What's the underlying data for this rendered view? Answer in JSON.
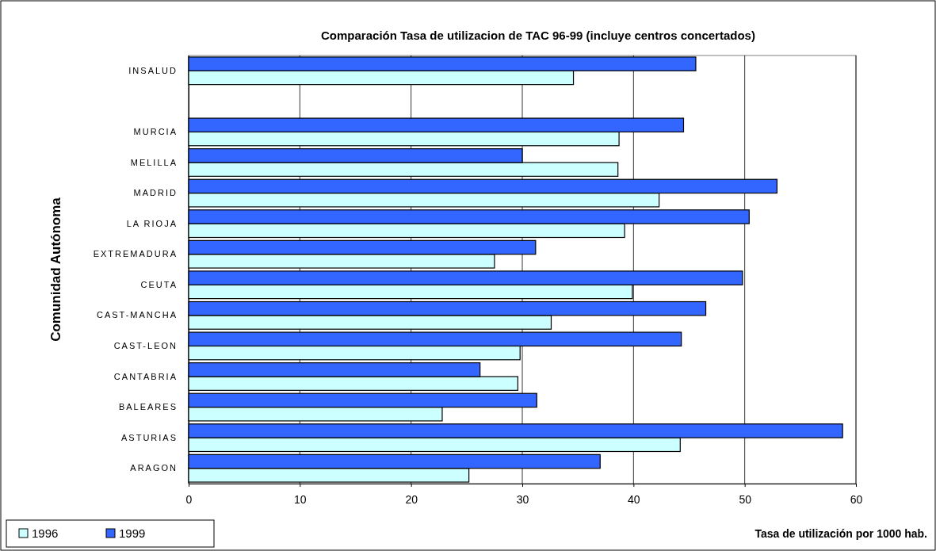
{
  "chart_data": {
    "type": "bar",
    "orientation": "horizontal",
    "title": "Comparación Tasa de utilizacion de TAC 96-99 (incluye centros concertados)",
    "xlabel": "Tasa de utilización por 1000 hab.",
    "ylabel": "Comunidad Autónoma",
    "categories": [
      "INSALUD",
      null,
      "MURCIA",
      "MELILLA",
      "MADRID",
      "LA RIOJA",
      "EXTREMADURA",
      "CEUTA",
      "CAST-MANCHA",
      "CAST-LEON",
      "CANTABRIA",
      "BALEARES",
      "ASTURIAS",
      "ARAGON"
    ],
    "series": [
      {
        "name": "1996",
        "color": "#ccffff",
        "values": [
          34.6,
          null,
          38.7,
          38.6,
          42.3,
          39.2,
          27.5,
          39.9,
          32.6,
          29.8,
          29.6,
          22.8,
          44.2,
          25.2
        ]
      },
      {
        "name": "1999",
        "color": "#3366ff",
        "values": [
          45.6,
          null,
          44.5,
          30.0,
          52.9,
          50.4,
          31.2,
          49.8,
          46.5,
          44.3,
          26.2,
          31.3,
          58.8,
          37.0
        ]
      }
    ],
    "xlim": [
      0,
      60
    ],
    "xticks": [
      0,
      10,
      20,
      30,
      40,
      50,
      60
    ],
    "grid": "x",
    "legend": "bottom left"
  }
}
